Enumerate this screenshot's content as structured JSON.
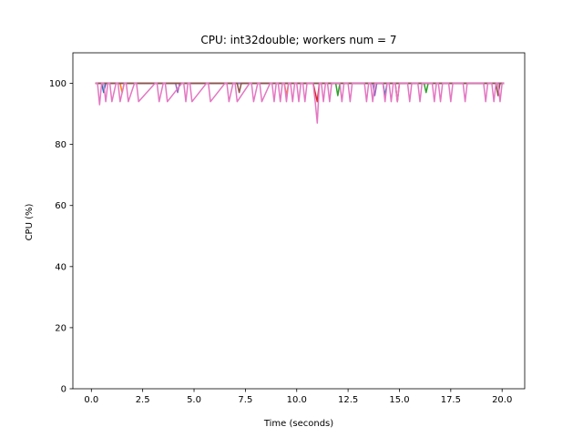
{
  "chart_data": {
    "type": "line",
    "title": "CPU: int32double; workers num = 7",
    "xlabel": "Time (seconds)",
    "ylabel": "CPU (%)",
    "xlim": [
      -0.9,
      21.1
    ],
    "ylim": [
      0,
      110
    ],
    "xticks": [
      0.0,
      2.5,
      5.0,
      7.5,
      10.0,
      12.5,
      15.0,
      17.5,
      20.0
    ],
    "xtick_labels": [
      "0.0",
      "2.5",
      "5.0",
      "7.5",
      "10.0",
      "12.5",
      "15.0",
      "17.5",
      "20.0"
    ],
    "yticks": [
      0,
      20,
      40,
      60,
      80,
      100
    ],
    "ytick_labels": [
      "0",
      "20",
      "40",
      "60",
      "80",
      "100"
    ],
    "grid": false,
    "colors": [
      "#1f77b4",
      "#ff7f0e",
      "#2ca02c",
      "#d62728",
      "#9467bd",
      "#8c564b",
      "#e377c2"
    ],
    "series": [
      {
        "color": "#1f77b4",
        "x": [
          0.2,
          0.5,
          0.6,
          0.7,
          14.2,
          14.3,
          14.4,
          18.6,
          20.0,
          20.1
        ],
        "y": [
          100,
          100,
          97,
          100,
          100,
          96,
          100,
          100,
          100,
          100
        ]
      },
      {
        "color": "#ff7f0e",
        "x": [
          0.2,
          1.4,
          1.5,
          1.6,
          9.4,
          9.5,
          9.6,
          20.1
        ],
        "y": [
          100,
          100,
          97,
          100,
          100,
          96,
          100,
          100
        ]
      },
      {
        "color": "#2ca02c",
        "x": [
          0.2,
          11.9,
          12.0,
          12.1,
          16.2,
          16.3,
          16.4,
          20.1
        ],
        "y": [
          100,
          100,
          96,
          100,
          100,
          97,
          100,
          100
        ]
      },
      {
        "color": "#d62728",
        "x": [
          0.2,
          10.8,
          10.9,
          11.0,
          11.1,
          14.8,
          14.9,
          15.0,
          20.1
        ],
        "y": [
          100,
          100,
          97,
          94,
          100,
          100,
          94,
          100,
          100
        ]
      },
      {
        "color": "#9467bd",
        "x": [
          0.2,
          4.1,
          4.2,
          4.3,
          13.7,
          13.8,
          13.9,
          20.1
        ],
        "y": [
          100,
          100,
          97,
          100,
          100,
          96,
          100,
          100
        ]
      },
      {
        "color": "#8c564b",
        "x": [
          0.2,
          7.1,
          7.2,
          7.3,
          19.7,
          19.8,
          19.9,
          20.1
        ],
        "y": [
          100,
          100,
          97,
          100,
          100,
          96,
          100,
          100
        ]
      },
      {
        "color": "#e377c2",
        "x": [
          0.2,
          0.3,
          0.4,
          0.5,
          0.6,
          0.7,
          0.8,
          0.9,
          1.0,
          1.2,
          1.3,
          1.4,
          1.6,
          1.7,
          1.8,
          2.1,
          2.2,
          2.3,
          3.1,
          3.2,
          3.3,
          3.5,
          3.6,
          3.7,
          4.4,
          4.5,
          4.6,
          4.7,
          4.8,
          4.9,
          5.6,
          5.7,
          5.8,
          6.5,
          6.6,
          6.7,
          6.9,
          7.0,
          7.1,
          7.7,
          7.8,
          7.9,
          8.1,
          8.2,
          8.3,
          8.7,
          8.8,
          8.9,
          9.0,
          9.1,
          9.2,
          9.3,
          9.4,
          9.5,
          9.6,
          9.7,
          9.8,
          9.9,
          10.0,
          10.1,
          10.2,
          10.3,
          10.4,
          10.5,
          10.7,
          10.8,
          10.9,
          11.0,
          11.1,
          11.2,
          11.3,
          11.4,
          11.5,
          11.6,
          11.7,
          11.8,
          12.1,
          12.2,
          12.3,
          12.5,
          12.6,
          12.7,
          13.3,
          13.4,
          13.5,
          13.6,
          13.7,
          13.8,
          14.2,
          14.3,
          14.4,
          14.5,
          14.6,
          14.7,
          14.8,
          14.9,
          15.0,
          15.4,
          15.5,
          15.6,
          15.9,
          16.0,
          16.1,
          16.6,
          16.7,
          16.8,
          16.9,
          17.0,
          17.1,
          17.4,
          17.5,
          17.6,
          18.1,
          18.2,
          18.3,
          19.1,
          19.2,
          19.3,
          19.5,
          19.6,
          19.7,
          19.8,
          19.9,
          20.0,
          20.1
        ],
        "y": [
          100,
          100,
          93,
          100,
          100,
          94,
          100,
          100,
          94,
          100,
          100,
          94,
          100,
          100,
          94,
          100,
          100,
          94,
          100,
          100,
          94,
          100,
          100,
          94,
          100,
          100,
          94,
          100,
          100,
          94,
          100,
          100,
          94,
          100,
          100,
          94,
          100,
          100,
          94,
          100,
          100,
          94,
          100,
          100,
          94,
          100,
          100,
          94,
          100,
          100,
          94,
          100,
          100,
          94,
          100,
          100,
          94,
          100,
          100,
          94,
          100,
          100,
          94,
          100,
          100,
          100,
          94,
          87,
          100,
          100,
          94,
          100,
          100,
          94,
          100,
          100,
          100,
          94,
          100,
          100,
          94,
          100,
          100,
          94,
          100,
          100,
          94,
          100,
          100,
          94,
          100,
          100,
          94,
          100,
          100,
          94,
          100,
          100,
          94,
          100,
          100,
          94,
          100,
          100,
          94,
          100,
          100,
          94,
          100,
          100,
          94,
          100,
          100,
          94,
          100,
          100,
          94,
          100,
          100,
          94,
          100,
          100,
          94,
          100,
          100
        ]
      }
    ]
  }
}
